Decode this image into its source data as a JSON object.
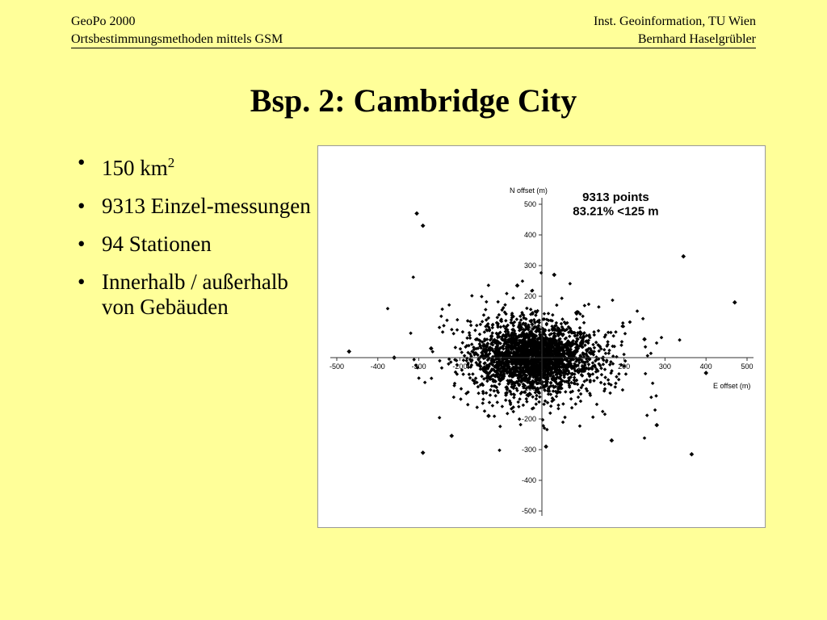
{
  "header": {
    "left_line1": "GeoPo 2000",
    "left_line2": "Ortsbestimmungsmethoden mittels GSM",
    "right_line1": "Inst. Geoinformation, TU Wien",
    "right_line2": "Bernhard Haselgrübler"
  },
  "slide": {
    "title": "Bsp. 2: Cambridge City",
    "bullets": [
      {
        "text": "150 km",
        "sup": "2"
      },
      {
        "text": "9313 Einzel-messungen"
      },
      {
        "text": "94 Stationen"
      },
      {
        "text": "Innerhalb / außerhalb von Gebäuden"
      }
    ]
  },
  "chart_data": {
    "type": "scatter",
    "ylabel": "N offset (m)",
    "xlabel": "E offset (m)",
    "xlim": [
      -500,
      500
    ],
    "ylim": [
      -500,
      500
    ],
    "x_ticks": [
      "-500",
      "-400",
      "-300",
      "-200",
      "-100",
      "100",
      "200",
      "300",
      "400",
      "500"
    ],
    "y_ticks": [
      "500",
      "400",
      "300",
      "200",
      "100",
      "-100",
      "-200",
      "-300",
      "-400",
      "-500"
    ],
    "annotation_line1": "9313 points",
    "annotation_line2": "83.21% <125 m",
    "point_color": "#000000",
    "cluster": {
      "center_x": -20,
      "center_y": 0,
      "approx_spread_x": 70,
      "approx_spread_y": 55,
      "count": 9313
    },
    "outliers": [
      {
        "x": -305,
        "y": 470
      },
      {
        "x": -290,
        "y": 430
      },
      {
        "x": 345,
        "y": 330
      },
      {
        "x": 470,
        "y": 180
      },
      {
        "x": -470,
        "y": 20
      },
      {
        "x": -360,
        "y": 0
      },
      {
        "x": -290,
        "y": -310
      },
      {
        "x": -220,
        "y": -255
      },
      {
        "x": 170,
        "y": -270
      },
      {
        "x": 365,
        "y": -315
      },
      {
        "x": 280,
        "y": -220
      },
      {
        "x": -60,
        "y": 235
      },
      {
        "x": 30,
        "y": 270
      },
      {
        "x": 250,
        "y": 60
      },
      {
        "x": -270,
        "y": 30
      },
      {
        "x": 400,
        "y": -50
      },
      {
        "x": 10,
        "y": -290
      },
      {
        "x": -130,
        "y": -190
      }
    ]
  }
}
